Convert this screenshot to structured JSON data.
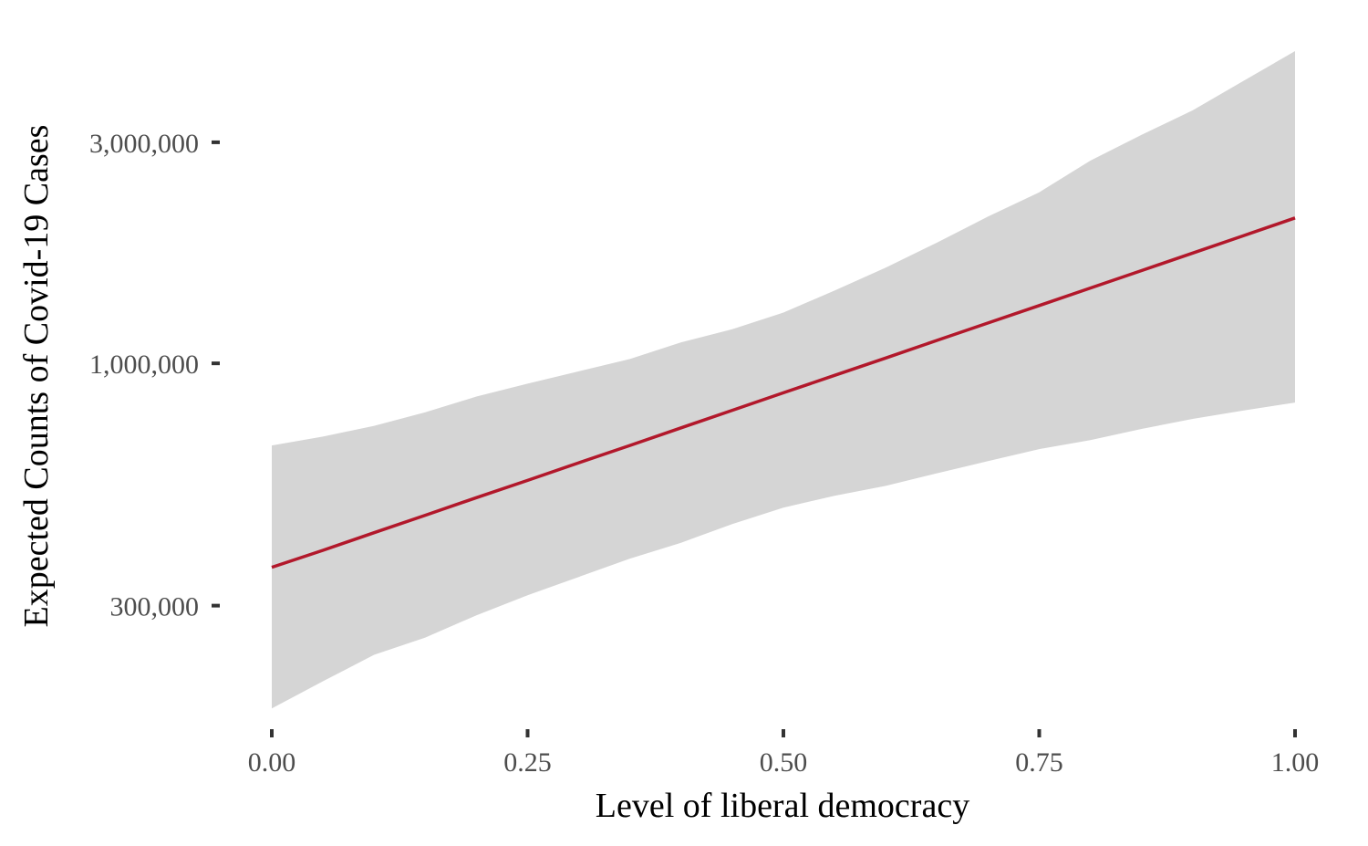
{
  "chart_data": {
    "type": "line",
    "title": "",
    "xlabel": "Level of liberal democracy",
    "ylabel": "Expected Counts of Covid-19 Cases",
    "y_scale": "log",
    "xlim": [
      0,
      1
    ],
    "ylim": [
      173000,
      4850000
    ],
    "grid": false,
    "legend": "none",
    "x_ticks": [
      {
        "value": 0.0,
        "label": "0.00"
      },
      {
        "value": 0.25,
        "label": "0.25"
      },
      {
        "value": 0.5,
        "label": "0.50"
      },
      {
        "value": 0.75,
        "label": "0.75"
      },
      {
        "value": 1.0,
        "label": "1.00"
      }
    ],
    "y_ticks": [
      {
        "value": 300000,
        "label": "300,000"
      },
      {
        "value": 1000000,
        "label": "1,000,000"
      },
      {
        "value": 3000000,
        "label": "3,000,000"
      }
    ],
    "colors": {
      "line": "#b2182b",
      "ribbon": "#d5d5d5",
      "ticks": "#333333"
    },
    "series": [
      {
        "x": [
          0.0,
          0.05,
          0.1,
          0.15,
          0.2,
          0.25,
          0.3,
          0.35,
          0.4,
          0.45,
          0.5,
          0.55,
          0.6,
          0.65,
          0.7,
          0.75,
          0.8,
          0.85,
          0.9,
          0.95,
          1.0
        ],
        "y": [
          363000,
          395000,
          431000,
          470000,
          513000,
          559000,
          610000,
          665000,
          726000,
          792000,
          864000,
          942000,
          1027000,
          1121000,
          1222000,
          1333000,
          1454000,
          1586000,
          1730000,
          1887000,
          2060000
        ],
        "lower": [
          180000,
          206000,
          235000,
          256000,
          286000,
          316000,
          346000,
          379000,
          410000,
          450000,
          488000,
          518000,
          544000,
          579000,
          615000,
          653000,
          683000,
          722000,
          759000,
          791000,
          823000
        ],
        "upper": [
          665000,
          695000,
          733000,
          784000,
          848000,
          904000,
          961000,
          1022000,
          1110000,
          1185000,
          1287000,
          1436000,
          1609000,
          1822000,
          2074000,
          2340000,
          2739000,
          3112000,
          3516000,
          4074000,
          4720000
        ]
      }
    ]
  }
}
